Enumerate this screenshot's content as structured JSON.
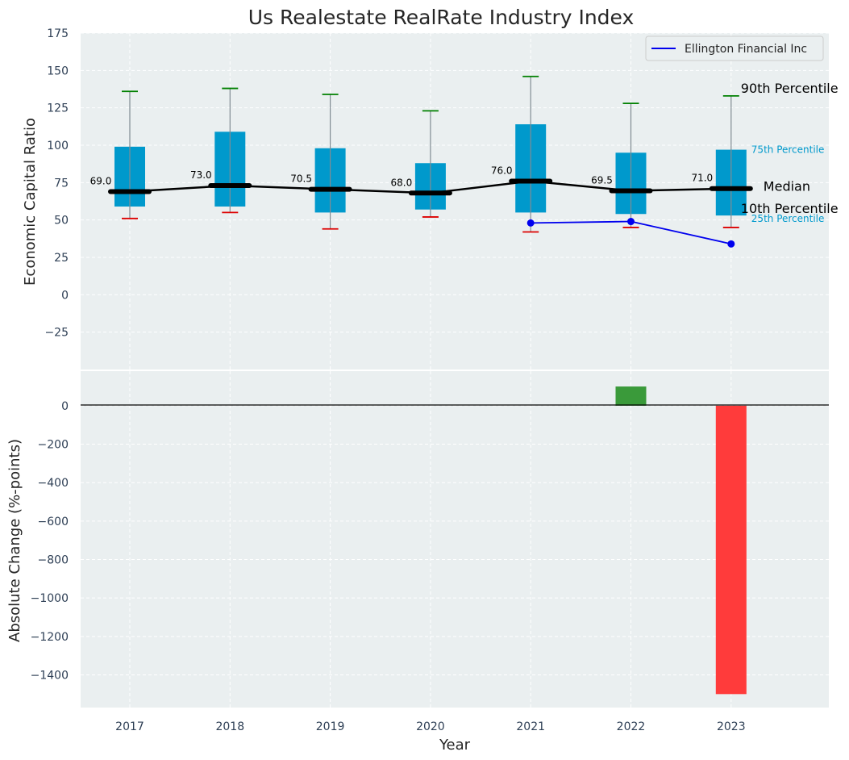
{
  "chart_data": {
    "title": "Us Realestate RealRate Industry Index",
    "xlabel": "Year",
    "top": {
      "type": "box",
      "ylabel": "Economic Capital Ratio",
      "ylim": [
        -50,
        175
      ],
      "yticks": [
        "175",
        "150",
        "125",
        "100",
        "75",
        "50",
        "25",
        "0",
        "−25"
      ],
      "ytick_values": [
        175,
        150,
        125,
        100,
        75,
        50,
        25,
        0,
        -25
      ],
      "categories": [
        "2017",
        "2018",
        "2019",
        "2020",
        "2021",
        "2022",
        "2023"
      ],
      "boxes": [
        {
          "year": "2017",
          "p10": 51,
          "p25": 59,
          "median": 69.0,
          "p75": 99,
          "p90": 136,
          "median_label": "69.0"
        },
        {
          "year": "2018",
          "p10": 55,
          "p25": 59,
          "median": 73.0,
          "p75": 109,
          "p90": 138,
          "median_label": "73.0"
        },
        {
          "year": "2019",
          "p10": 44,
          "p25": 55,
          "median": 70.5,
          "p75": 98,
          "p90": 134,
          "median_label": "70.5"
        },
        {
          "year": "2020",
          "p10": 52,
          "p25": 57,
          "median": 68.0,
          "p75": 88,
          "p90": 123,
          "median_label": "68.0"
        },
        {
          "year": "2021",
          "p10": 42,
          "p25": 55,
          "median": 76.0,
          "p75": 114,
          "p90": 146,
          "median_label": "76.0"
        },
        {
          "year": "2022",
          "p10": 45,
          "p25": 54,
          "median": 69.5,
          "p75": 95,
          "p90": 128,
          "median_label": "69.5"
        },
        {
          "year": "2023",
          "p10": 45,
          "p25": 53,
          "median": 71.0,
          "p75": 97,
          "p90": 133,
          "median_label": "71.0"
        }
      ],
      "series": [
        {
          "name": "Ellington Financial Inc",
          "color": "#0000ee",
          "x": [
            "2021",
            "2022",
            "2023"
          ],
          "values": [
            48,
            49,
            34
          ]
        }
      ],
      "annotations": {
        "p90": "90th Percentile",
        "p75": "75th Percentile",
        "median": "Median",
        "p25": "25th Percentile",
        "p10": "10th Percentile"
      },
      "colors": {
        "box": "#0099cc",
        "median_line": "#000000",
        "whisker": "#808c93",
        "p90_cap": "#008000",
        "p10_cap": "#dd0000",
        "annotation_small": "#0099cc",
        "plot_bg": "#eaeff0"
      },
      "legend_position": "top-right",
      "grid": true
    },
    "bottom": {
      "type": "bar",
      "ylabel": "Absolute Change (%-points)",
      "ylim": [
        -1570,
        180
      ],
      "yticks": [
        "0",
        "−200",
        "−400",
        "−600",
        "−800",
        "−1000",
        "−1200",
        "−1400"
      ],
      "ytick_values": [
        0,
        -200,
        -400,
        -600,
        -800,
        -1000,
        -1200,
        -1400
      ],
      "categories": [
        "2017",
        "2018",
        "2019",
        "2020",
        "2021",
        "2022",
        "2023"
      ],
      "bars": [
        {
          "year": "2022",
          "value": 100,
          "color": "#3a9a3a"
        },
        {
          "year": "2023",
          "value": -1500,
          "color": "#ff3b3b"
        }
      ],
      "grid": true
    }
  }
}
